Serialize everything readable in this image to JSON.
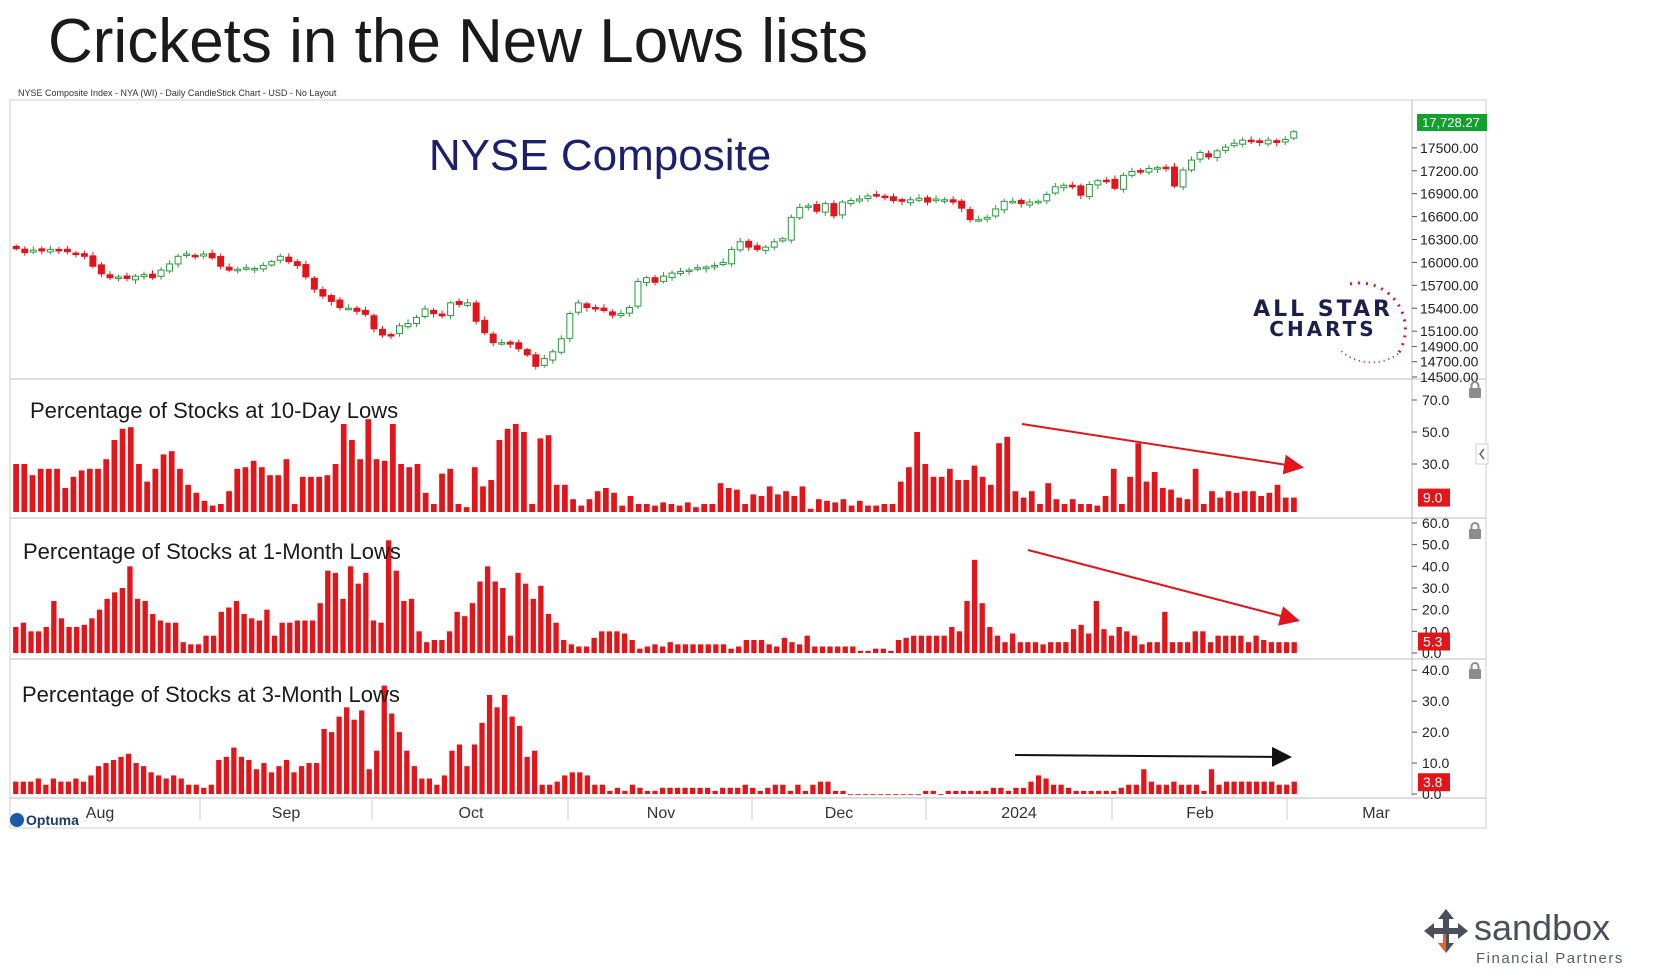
{
  "slide": {
    "title": "Crickets in the New Lows lists"
  },
  "chart_header": "NYSE Composite Index - NYA (WI) - Daily CandleStick Chart - USD - No Layout",
  "colors": {
    "up": "#2a9a3c",
    "down": "#e2151b",
    "bar": "#e2151b",
    "title_navy": "#1b1f6e",
    "last_price_bg": "#14a02e",
    "last_value_bg": "#e2151b",
    "grid": "#e6e6e6",
    "arrow_red": "#e2151b",
    "arrow_black": "#111111"
  },
  "watermark": {
    "line1": "ALL STAR",
    "line2": "CHARTS"
  },
  "optuma_label": "Optuma",
  "brand": {
    "name": "sandbox",
    "tagline": "Financial Partners"
  },
  "x_axis": {
    "labels": [
      "Aug",
      "Sep",
      "Oct",
      "Nov",
      "Dec",
      "2024",
      "Feb",
      "Mar"
    ]
  },
  "chart_data": [
    {
      "type": "candlestick",
      "title": "NYSE Composite",
      "y_ticks": [
        "17500.00",
        "17200.00",
        "16900.00",
        "16600.00",
        "16300.00",
        "16000.00",
        "15700.00",
        "15400.00",
        "15100.00",
        "14900.00",
        "14700.00",
        "14500.00"
      ],
      "ylim": [
        14500,
        18100
      ],
      "last_price": "17,728.27",
      "close": [
        16180,
        16130,
        16160,
        16150,
        16170,
        16160,
        16140,
        16120,
        16080,
        15950,
        15850,
        15800,
        15810,
        15790,
        15820,
        15840,
        15800,
        15900,
        15980,
        16080,
        16110,
        16090,
        16110,
        16060,
        15950,
        15900,
        15910,
        15930,
        15920,
        15960,
        16010,
        16080,
        16010,
        15960,
        15810,
        15650,
        15560,
        15490,
        15410,
        15400,
        15360,
        15320,
        15130,
        15050,
        15050,
        15170,
        15200,
        15280,
        15390,
        15330,
        15300,
        15470,
        15450,
        15470,
        15230,
        15080,
        14950,
        14950,
        14930,
        14870,
        14790,
        14640,
        14740,
        14830,
        15000,
        15330,
        15470,
        15410,
        15390,
        15370,
        15310,
        15330,
        15410,
        15750,
        15800,
        15740,
        15820,
        15860,
        15880,
        15900,
        15930,
        15940,
        15960,
        16000,
        16170,
        16270,
        16200,
        16170,
        16200,
        16270,
        16310,
        16590,
        16720,
        16740,
        16670,
        16770,
        16610,
        16790,
        16810,
        16830,
        16870,
        16880,
        16860,
        16810,
        16800,
        16820,
        16840,
        16790,
        16830,
        16820,
        16790,
        16710,
        16560,
        16560,
        16590,
        16700,
        16800,
        16800,
        16770,
        16790,
        16800,
        16890,
        16990,
        17010,
        16990,
        16880,
        17020,
        17070,
        17070,
        16970,
        17140,
        17190,
        17200,
        17230,
        17240,
        17230,
        17000,
        17210,
        17340,
        17440,
        17380,
        17460,
        17510,
        17560,
        17600,
        17580,
        17570,
        17600,
        17570,
        17610,
        17710
      ]
    },
    {
      "type": "bar",
      "title": "Percentage of Stocks at 10-Day Lows",
      "y_ticks": [
        "70.0",
        "50.0",
        "30.0"
      ],
      "ylim": [
        0,
        80
      ],
      "last_value": "9.0",
      "values": [
        30,
        30,
        23,
        27,
        27,
        27,
        15,
        22,
        26,
        27,
        27,
        33,
        45,
        52,
        53,
        30,
        19,
        27,
        36,
        38,
        27,
        17,
        12,
        7,
        4,
        5,
        13,
        27,
        28,
        32,
        28,
        23,
        23,
        33,
        5,
        22,
        22,
        22,
        23,
        30,
        55,
        45,
        33,
        58,
        33,
        32,
        55,
        30,
        28,
        30,
        12,
        5,
        24,
        27,
        5,
        3,
        28,
        16,
        20,
        45,
        52,
        55,
        50,
        5,
        46,
        48,
        17,
        17,
        8,
        4,
        8,
        13,
        15,
        12,
        4,
        10,
        5,
        5,
        4,
        6,
        5,
        4,
        6,
        3,
        5,
        5,
        18,
        15,
        14,
        5,
        11,
        10,
        16,
        11,
        13,
        10,
        16,
        2,
        8,
        7,
        6,
        8,
        4,
        7,
        4,
        4,
        5,
        5,
        19,
        28,
        50,
        30,
        22,
        22,
        27,
        20,
        20,
        29,
        22,
        17,
        43,
        47,
        13,
        9,
        13,
        5,
        18,
        8,
        5,
        8,
        5,
        5,
        4,
        10,
        27,
        5,
        22,
        43,
        19,
        25,
        15,
        14,
        9,
        8,
        27,
        5,
        13,
        9,
        13,
        12,
        13,
        13,
        10,
        12,
        17,
        9,
        9
      ]
    },
    {
      "type": "bar",
      "title": "Percentage of Stocks at 1-Month Lows",
      "y_ticks": [
        "60.0",
        "50.0",
        "40.0",
        "30.0",
        "20.0",
        "10.0",
        "0.0"
      ],
      "ylim": [
        0,
        60
      ],
      "last_value": "5.3",
      "values": [
        12,
        14,
        10,
        10,
        12,
        24,
        16,
        12,
        12,
        13,
        16,
        20,
        25,
        28,
        30,
        40,
        25,
        24,
        18,
        15,
        14,
        14,
        5,
        4,
        4,
        8,
        8,
        19,
        21,
        24,
        18,
        16,
        15,
        20,
        8,
        14,
        14,
        15,
        15,
        15,
        23,
        38,
        37,
        25,
        40,
        32,
        37,
        15,
        14,
        52,
        38,
        24,
        25,
        10,
        5,
        6,
        6,
        10,
        19,
        17,
        23,
        33,
        40,
        33,
        30,
        8,
        37,
        32,
        25,
        31,
        18,
        14,
        6,
        4,
        3,
        3,
        7,
        10,
        10,
        10,
        9,
        6,
        2,
        3,
        4,
        3,
        5,
        4,
        4,
        4,
        4,
        4,
        4,
        4,
        2,
        3,
        6,
        6,
        6,
        4,
        3,
        7,
        5,
        4,
        8,
        3,
        3,
        3,
        3,
        3,
        3,
        1,
        1,
        2,
        2,
        1,
        6,
        7,
        8,
        8,
        8,
        8,
        8,
        12,
        10,
        24,
        43,
        23,
        12,
        8,
        5,
        9,
        5,
        5,
        5,
        4,
        5,
        5,
        5,
        11,
        13,
        9,
        24,
        11,
        8,
        12,
        10,
        8,
        4,
        5,
        5,
        19,
        5,
        5,
        5,
        10,
        10,
        5,
        8,
        8,
        8,
        8,
        5,
        8,
        6,
        5,
        5,
        5,
        5
      ]
    },
    {
      "type": "bar",
      "title": "Percentage of Stocks at 3-Month Lows",
      "y_ticks": [
        "40.0",
        "30.0",
        "20.0",
        "10.0",
        "0.0"
      ],
      "ylim": [
        0,
        42
      ],
      "last_value": "3.8",
      "values": [
        4,
        4,
        4,
        5,
        3,
        5,
        4,
        4,
        5,
        4,
        6,
        9,
        10,
        11,
        12,
        13,
        10,
        9,
        7,
        6,
        5,
        6,
        5,
        3,
        3,
        2,
        3,
        11,
        12,
        15,
        12,
        11,
        8,
        10,
        7,
        9,
        11,
        7,
        9,
        10,
        10,
        21,
        20,
        25,
        28,
        24,
        27,
        8,
        14,
        35,
        26,
        20,
        14,
        9,
        5,
        5,
        3,
        6,
        14,
        16,
        9,
        16,
        23,
        32,
        28,
        32,
        25,
        22,
        12,
        14,
        3,
        3,
        4,
        6,
        7,
        7,
        6,
        3,
        3,
        1,
        2,
        1,
        3,
        2,
        1,
        1,
        2,
        2,
        2,
        2,
        2,
        2,
        2,
        1,
        2,
        2,
        2,
        3,
        2,
        1,
        2,
        3,
        3,
        1,
        3,
        1,
        3,
        4,
        4,
        1,
        1,
        0,
        0,
        0,
        0,
        0,
        0,
        0,
        0,
        0,
        0,
        1,
        1,
        0,
        1,
        1,
        1,
        1,
        1,
        1,
        2,
        2,
        1,
        2,
        2,
        4,
        6,
        5,
        3,
        3,
        2,
        1,
        1,
        1,
        1,
        1,
        1,
        2,
        3,
        3,
        8,
        4,
        3,
        3,
        4,
        3,
        3,
        3,
        1,
        8,
        3,
        4,
        4,
        4,
        4,
        4,
        4,
        4,
        3,
        3,
        4
      ]
    }
  ]
}
